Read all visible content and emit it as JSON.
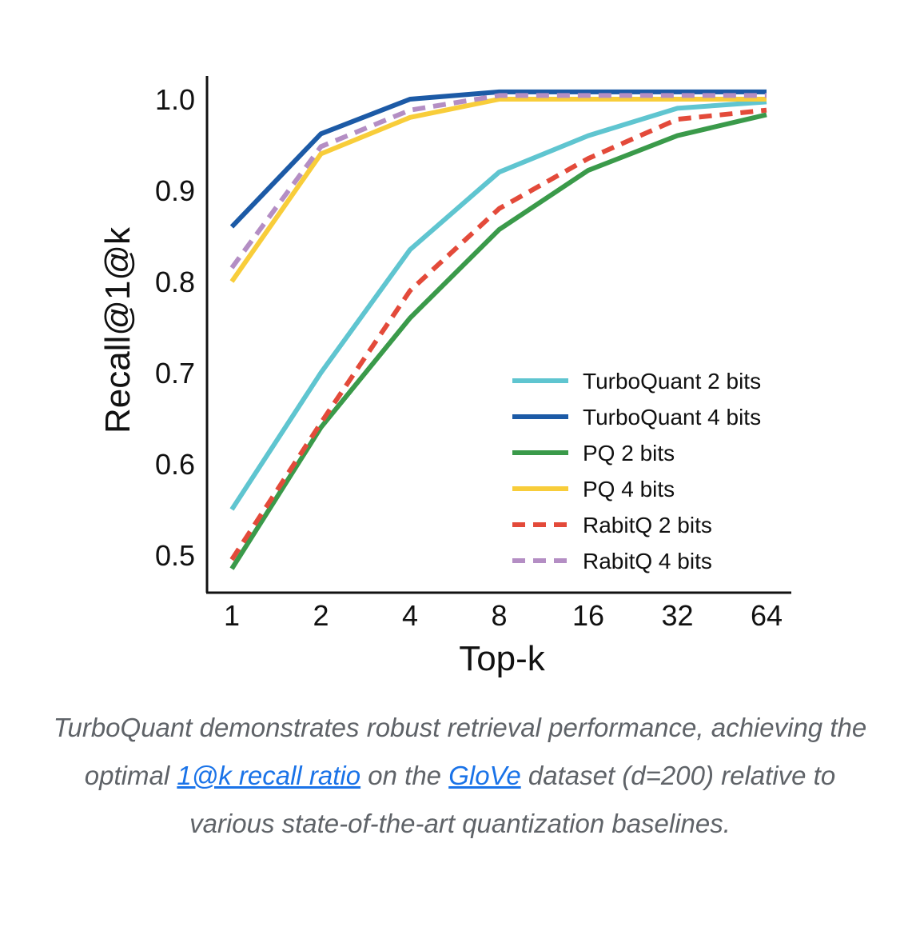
{
  "chart_data": {
    "type": "line",
    "xlabel": "Top-k",
    "ylabel": "Recall@1@k",
    "categories": [
      "1",
      "2",
      "4",
      "8",
      "16",
      "32",
      "64"
    ],
    "yticks": [
      "0.5",
      "0.6",
      "0.7",
      "0.8",
      "0.9",
      "1.0"
    ],
    "ylim": [
      0.47,
      1.03
    ],
    "legend_position": "lower-right",
    "series": [
      {
        "name": "TurboQuant 2 bits",
        "color": "#5fc5d0",
        "dashed": false,
        "values": [
          0.55,
          0.7,
          0.835,
          0.92,
          0.96,
          0.99,
          0.997
        ]
      },
      {
        "name": "TurboQuant 4 bits",
        "color": "#1c5aa6",
        "dashed": false,
        "values": [
          0.86,
          0.962,
          1.0,
          1.008,
          1.008,
          1.008,
          1.008
        ]
      },
      {
        "name": "PQ 2 bits",
        "color": "#3a9a4a",
        "dashed": false,
        "values": [
          0.485,
          0.64,
          0.76,
          0.857,
          0.922,
          0.96,
          0.983
        ]
      },
      {
        "name": "PQ 4 bits",
        "color": "#f8cd3a",
        "dashed": false,
        "values": [
          0.8,
          0.94,
          0.98,
          1.0,
          1.0,
          1.0,
          1.0
        ]
      },
      {
        "name": "RabitQ 2 bits",
        "color": "#e34a3a",
        "dashed": true,
        "values": [
          0.495,
          0.645,
          0.79,
          0.88,
          0.935,
          0.978,
          0.988
        ]
      },
      {
        "name": "RabitQ 4 bits",
        "color": "#b48ec4",
        "dashed": true,
        "values": [
          0.815,
          0.948,
          0.988,
          1.004,
          1.004,
          1.004,
          1.004
        ]
      }
    ]
  },
  "caption": {
    "part1": "TurboQuant demonstrates robust retrieval performance, achieving the optimal ",
    "link1": "1@k recall ratio",
    "part2": " on the ",
    "link2": "GloVe",
    "part3": " dataset (d=200) relative to various state-of-the-art quantization baselines."
  }
}
